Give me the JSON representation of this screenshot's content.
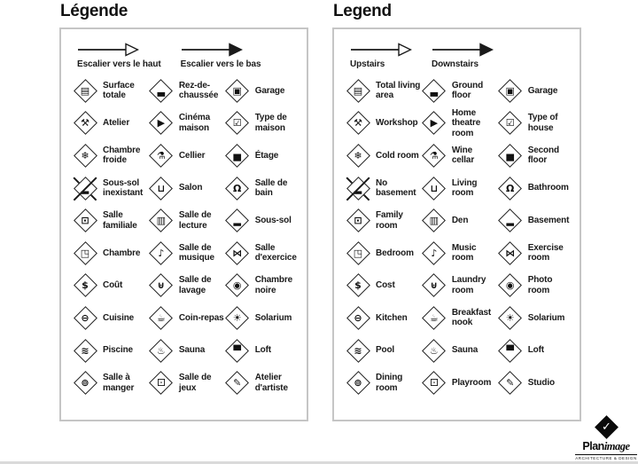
{
  "panels": [
    {
      "title": "Légende",
      "arrows": [
        {
          "label": "Escalier vers le haut",
          "style": "outline",
          "icon": "upstairs-arrow-icon"
        },
        {
          "label": "Escalier vers le bas",
          "style": "solid",
          "icon": "downstairs-arrow-icon"
        }
      ],
      "items": [
        {
          "icon": "total-living-area-icon",
          "glyph": "▤",
          "label": "Surface totale"
        },
        {
          "icon": "ground-floor-icon",
          "glyph": "▃",
          "label": "Rez-de-chaussée"
        },
        {
          "icon": "garage-icon",
          "glyph": "▣",
          "label": "Garage"
        },
        {
          "icon": "workshop-icon",
          "glyph": "⚒",
          "label": "Atelier"
        },
        {
          "icon": "home-theatre-icon",
          "glyph": "▶",
          "label": "Cinéma maison"
        },
        {
          "icon": "type-of-house-icon",
          "glyph": "☑",
          "label": "Type de maison"
        },
        {
          "icon": "cold-room-icon",
          "glyph": "❄",
          "label": "Chambre froide"
        },
        {
          "icon": "wine-cellar-icon",
          "glyph": "⚗",
          "label": "Cellier"
        },
        {
          "icon": "second-floor-icon",
          "glyph": "▅",
          "label": "Étage"
        },
        {
          "icon": "no-basement-icon",
          "glyph": "▂",
          "label": "Sous-sol inexistant",
          "crossed": true
        },
        {
          "icon": "living-room-icon",
          "glyph": "⊔",
          "label": "Salon"
        },
        {
          "icon": "bathroom-icon",
          "glyph": "Ω",
          "label": "Salle de bain"
        },
        {
          "icon": "family-room-icon",
          "glyph": "⊡",
          "label": "Salle familiale"
        },
        {
          "icon": "den-icon",
          "glyph": "▥",
          "label": "Salle de lecture"
        },
        {
          "icon": "basement-icon",
          "glyph": "▂",
          "label": "Sous-sol"
        },
        {
          "icon": "bedroom-icon",
          "glyph": "◳",
          "label": "Chambre"
        },
        {
          "icon": "music-room-icon",
          "glyph": "♪",
          "label": "Salle de musique"
        },
        {
          "icon": "exercise-room-icon",
          "glyph": "⋈",
          "label": "Salle d'exercice"
        },
        {
          "icon": "cost-icon",
          "glyph": "$",
          "label": "Coût"
        },
        {
          "icon": "laundry-room-icon",
          "glyph": "⊎",
          "label": "Salle de lavage"
        },
        {
          "icon": "photo-room-icon",
          "glyph": "◉",
          "label": "Chambre noire"
        },
        {
          "icon": "kitchen-icon",
          "glyph": "⊖",
          "label": "Cuisine"
        },
        {
          "icon": "breakfast-nook-icon",
          "glyph": "☕",
          "label": "Coin-repas"
        },
        {
          "icon": "solarium-icon",
          "glyph": "☀",
          "label": "Solarium"
        },
        {
          "icon": "pool-icon",
          "glyph": "≋",
          "label": "Piscine"
        },
        {
          "icon": "sauna-icon",
          "glyph": "♨",
          "label": "Sauna"
        },
        {
          "icon": "loft-icon",
          "glyph": "▀",
          "label": "Loft"
        },
        {
          "icon": "dining-room-icon",
          "glyph": "⊚",
          "label": "Salle à manger"
        },
        {
          "icon": "playroom-icon",
          "glyph": "⚀",
          "label": "Salle de jeux"
        },
        {
          "icon": "studio-icon",
          "glyph": "✎",
          "label": "Atelier d'artiste"
        }
      ]
    },
    {
      "title": "Legend",
      "arrows": [
        {
          "label": "Upstairs",
          "style": "outline",
          "icon": "upstairs-arrow-icon"
        },
        {
          "label": "Downstairs",
          "style": "solid",
          "icon": "downstairs-arrow-icon"
        }
      ],
      "items": [
        {
          "icon": "total-living-area-icon",
          "glyph": "▤",
          "label": "Total living area"
        },
        {
          "icon": "ground-floor-icon",
          "glyph": "▃",
          "label": "Ground floor"
        },
        {
          "icon": "garage-icon",
          "glyph": "▣",
          "label": "Garage"
        },
        {
          "icon": "workshop-icon",
          "glyph": "⚒",
          "label": "Workshop"
        },
        {
          "icon": "home-theatre-icon",
          "glyph": "▶",
          "label": "Home theatre room"
        },
        {
          "icon": "type-of-house-icon",
          "glyph": "☑",
          "label": "Type of house"
        },
        {
          "icon": "cold-room-icon",
          "glyph": "❄",
          "label": "Cold room"
        },
        {
          "icon": "wine-cellar-icon",
          "glyph": "⚗",
          "label": "Wine cellar"
        },
        {
          "icon": "second-floor-icon",
          "glyph": "▅",
          "label": "Second floor"
        },
        {
          "icon": "no-basement-icon",
          "glyph": "▂",
          "label": "No basement",
          "crossed": true
        },
        {
          "icon": "living-room-icon",
          "glyph": "⊔",
          "label": "Living room"
        },
        {
          "icon": "bathroom-icon",
          "glyph": "Ω",
          "label": "Bathroom"
        },
        {
          "icon": "family-room-icon",
          "glyph": "⊡",
          "label": "Family room"
        },
        {
          "icon": "den-icon",
          "glyph": "▥",
          "label": "Den"
        },
        {
          "icon": "basement-icon",
          "glyph": "▂",
          "label": "Basement"
        },
        {
          "icon": "bedroom-icon",
          "glyph": "◳",
          "label": "Bedroom"
        },
        {
          "icon": "music-room-icon",
          "glyph": "♪",
          "label": "Music room"
        },
        {
          "icon": "exercise-room-icon",
          "glyph": "⋈",
          "label": "Exercise room"
        },
        {
          "icon": "cost-icon",
          "glyph": "$",
          "label": "Cost"
        },
        {
          "icon": "laundry-room-icon",
          "glyph": "⊎",
          "label": "Laundry room"
        },
        {
          "icon": "photo-room-icon",
          "glyph": "◉",
          "label": "Photo room"
        },
        {
          "icon": "kitchen-icon",
          "glyph": "⊖",
          "label": "Kitchen"
        },
        {
          "icon": "breakfast-nook-icon",
          "glyph": "☕",
          "label": "Breakfast nook"
        },
        {
          "icon": "solarium-icon",
          "glyph": "☀",
          "label": "Solarium"
        },
        {
          "icon": "pool-icon",
          "glyph": "≋",
          "label": "Pool"
        },
        {
          "icon": "sauna-icon",
          "glyph": "♨",
          "label": "Sauna"
        },
        {
          "icon": "loft-icon",
          "glyph": "▀",
          "label": "Loft"
        },
        {
          "icon": "dining-room-icon",
          "glyph": "⊚",
          "label": "Dining room"
        },
        {
          "icon": "playroom-icon",
          "glyph": "⚀",
          "label": "Playroom"
        },
        {
          "icon": "studio-icon",
          "glyph": "✎",
          "label": "Studio"
        }
      ]
    }
  ],
  "logo": {
    "name_bold": "Plan",
    "name_italic": "image",
    "tagline": "ARCHITECTURE & DESIGN",
    "check": "✓"
  }
}
